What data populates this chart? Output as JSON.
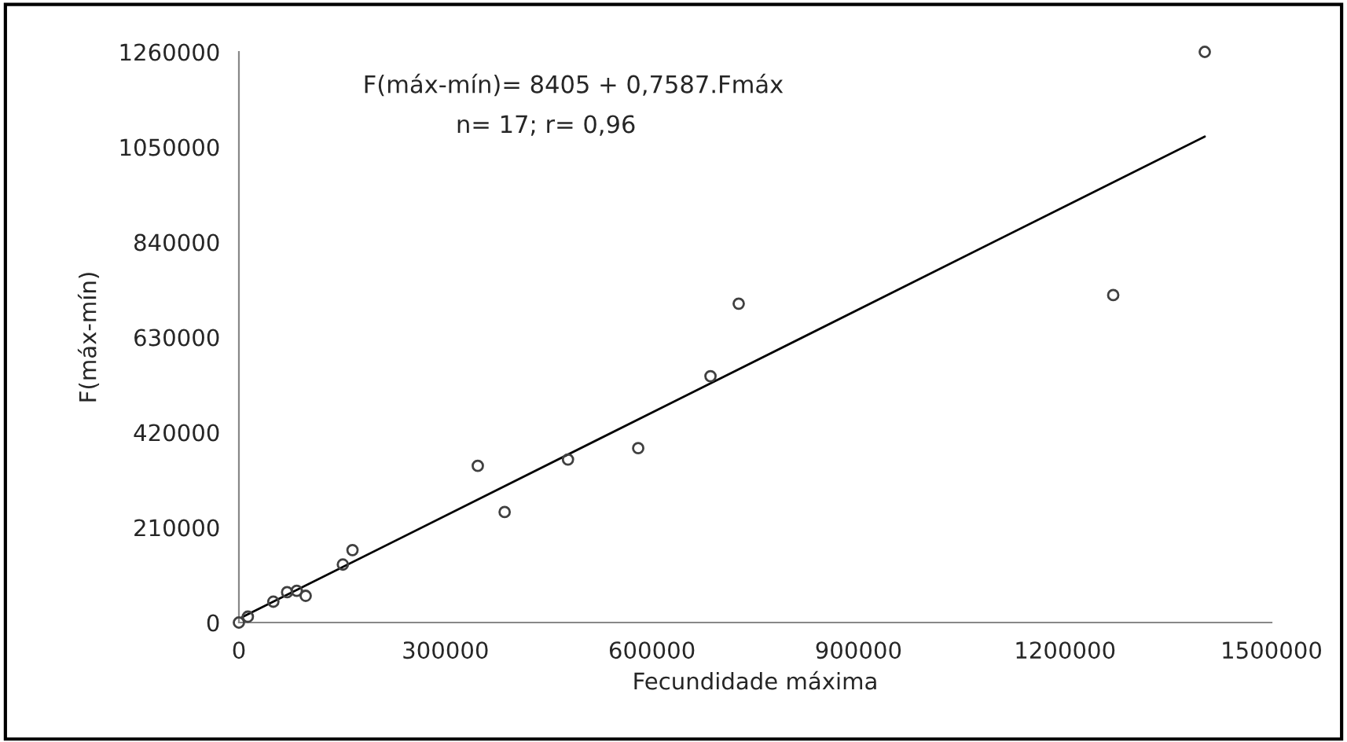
{
  "chart_data": {
    "type": "scatter",
    "xlabel": "Fecundidade máxima",
    "ylabel": "F(máx-mín)",
    "annotations": [
      "F(máx-mín)= 8405 + 0,7587.Fmáx",
      "n= 17; r= 0,96"
    ],
    "series": [
      {
        "color": "#404040",
        "marker": "circle",
        "x": [
          0,
          13000,
          50000,
          70000,
          84000,
          97000,
          151000,
          165000,
          347000,
          386000,
          478000,
          580000,
          685000,
          726000,
          1270000,
          1403000
        ],
        "values": [
          0,
          13000,
          46000,
          67000,
          70000,
          59000,
          128000,
          160000,
          346000,
          244000,
          360000,
          385000,
          544000,
          704000,
          723000,
          1260000
        ]
      },
      {
        "type": "line",
        "color": "#000000",
        "x": [
          5000,
          1403000
        ],
        "values": [
          12000,
          1073000
        ]
      }
    ],
    "xlim": [
      0,
      1500000
    ],
    "xticks": [
      0,
      300000,
      600000,
      900000,
      1200000,
      1500000
    ],
    "ylim": [
      0,
      1260000
    ],
    "yticks": [
      0,
      210000,
      420000,
      630000,
      840000,
      1050000,
      1260000
    ],
    "grid": false,
    "legend": false
  }
}
